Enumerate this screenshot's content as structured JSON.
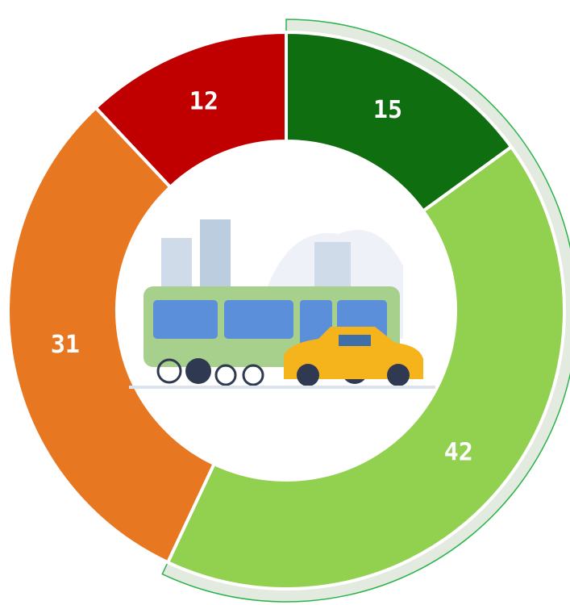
{
  "chart_data": {
    "type": "donut",
    "values": [
      15,
      42,
      31,
      12
    ],
    "colors": [
      "#0f6e0f",
      "#92d050",
      "#e87722",
      "#c00000"
    ]
  }
}
